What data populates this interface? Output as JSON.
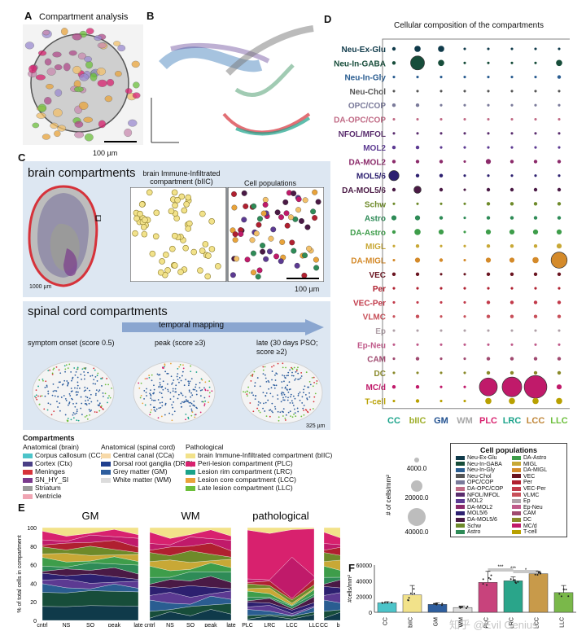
{
  "panel_labels": {
    "a": "A",
    "b": "B",
    "c": "C",
    "d": "D",
    "e": "E",
    "f": "F"
  },
  "panel_a": {
    "title": "Compartment analysis",
    "scale": "100 µm"
  },
  "panel_c": {
    "brain_title": "brain compartments",
    "biic_title": "brain Immune-Infiltrated compartment (bIIC)",
    "cellpop_title": "Cell populations",
    "scale_brain": "1000 µm",
    "scale_inset": "100 µm",
    "spinal_title": "spinal cord compartments",
    "temporal": "temporal mapping",
    "stage1": "symptom onset (score 0.5)",
    "stage2": "peak (score ≥3)",
    "stage3": "late (30 days PSO; score ≥2)",
    "scale_spinal": "325 µm",
    "legend_title": "Compartments",
    "legend_groups": [
      {
        "title": "Anatomical (brain)",
        "items": [
          {
            "label": "Corpus callosum (CC)",
            "color": "#4cc4c9"
          },
          {
            "label": "Cortex (Ctx)",
            "color": "#4a3f86"
          },
          {
            "label": "Meninges",
            "color": "#d6323a"
          },
          {
            "label": "SN_HY_SI",
            "color": "#7a3a8c"
          },
          {
            "label": "Striatum",
            "color": "#9a9a9a"
          },
          {
            "label": "Ventricle",
            "color": "#f0a5b3"
          }
        ]
      },
      {
        "title": "Anatomical (spinal cord)",
        "items": [
          {
            "label": "Central canal (CCa)",
            "color": "#f7d9a8"
          },
          {
            "label": "Dorsal root ganglia (DRG)",
            "color": "#1f3f8f"
          },
          {
            "label": "Grey matter (GM)",
            "color": "#2e5e9e"
          },
          {
            "label": "White matter (WM)",
            "color": "#dcdcdc"
          }
        ]
      },
      {
        "title": "Pathological",
        "items": [
          {
            "label": "brain Immune-Infiltrated compartment (bIIC)",
            "color": "#f2e28a"
          },
          {
            "label": "Peri-lesion compartment (PLC)",
            "color": "#d8216e"
          },
          {
            "label": "Lesion rim compartment (LRC)",
            "color": "#1aa38a"
          },
          {
            "label": "Lesion core compartment (LCC)",
            "color": "#e9a33a"
          },
          {
            "label": "Late lesion compartment (LLC)",
            "color": "#6cbf3b"
          }
        ]
      }
    ]
  },
  "chart_data": [
    {
      "type": "scatter",
      "title": "Cellular composition of the compartments",
      "columns": [
        "CC",
        "bIIC",
        "GM",
        "WM",
        "PLC",
        "LRC",
        "LCC",
        "LLC"
      ],
      "column_colors": [
        "#1aa38a",
        "#9fae2a",
        "#1f4f8f",
        "#a8a8a8",
        "#d8216e",
        "#1aa38a",
        "#c0873a",
        "#6cbf3b"
      ],
      "rows": [
        {
          "label": "Neu-Ex-Glu",
          "color": "#0f3a4a",
          "values": [
            1,
            3,
            3,
            0.5,
            0.5,
            0.5,
            0.5,
            0.5
          ]
        },
        {
          "label": "Neu-In-GABA",
          "color": "#174d3a",
          "values": [
            1,
            15,
            3,
            0.5,
            0.5,
            0.5,
            0.5,
            3
          ]
        },
        {
          "label": "Neu-In-Gly",
          "color": "#2a5d91",
          "values": [
            0.5,
            0.5,
            0.5,
            0.5,
            0.5,
            0.5,
            0.5,
            1
          ]
        },
        {
          "label": "Neu-Chol",
          "color": "#555555",
          "values": [
            0.5,
            0.5,
            0.5,
            0.5,
            0.5,
            0.5,
            0.5,
            0.5
          ]
        },
        {
          "label": "OPC/COP",
          "color": "#7a7a9a",
          "values": [
            1,
            1,
            0.5,
            0.5,
            0.5,
            0.5,
            0.5,
            0.5
          ]
        },
        {
          "label": "DA-OPC/COP",
          "color": "#c06a85",
          "values": [
            0.5,
            0.5,
            0.5,
            0.5,
            0.5,
            0.5,
            0.5,
            0.5
          ]
        },
        {
          "label": "NFOL/MFOL",
          "color": "#5a2d6e",
          "values": [
            0.5,
            0.5,
            0.5,
            0.5,
            0.5,
            0.5,
            0.5,
            0.5
          ]
        },
        {
          "label": "MOL2",
          "color": "#5c3a92",
          "values": [
            1,
            1,
            0.5,
            0.5,
            0.5,
            0.5,
            0.5,
            0.5
          ]
        },
        {
          "label": "DA-MOL2",
          "color": "#8b2a6a",
          "values": [
            1,
            1,
            1,
            0.5,
            2,
            1,
            1,
            1
          ]
        },
        {
          "label": "MOL5/6",
          "color": "#2d2070",
          "values": [
            8,
            1,
            1,
            0.5,
            0.5,
            0.5,
            0.5,
            0.5
          ]
        },
        {
          "label": "DA-MOL5/6",
          "color": "#4a1a45",
          "values": [
            1,
            4,
            1,
            0.5,
            1,
            1,
            1,
            1
          ]
        },
        {
          "label": "Schw",
          "color": "#6e8a2a",
          "values": [
            0.5,
            0.5,
            0.5,
            0.5,
            1,
            1,
            1,
            1
          ]
        },
        {
          "label": "Astro",
          "color": "#2e8b57",
          "values": [
            2,
            2,
            1,
            0.5,
            1,
            1,
            1,
            1
          ]
        },
        {
          "label": "DA-Astro",
          "color": "#3e9d4a",
          "values": [
            1,
            3,
            2,
            0.5,
            2,
            2,
            2,
            2
          ]
        },
        {
          "label": "MIGL",
          "color": "#c8a836",
          "values": [
            0.5,
            1,
            0.5,
            0.5,
            1,
            1,
            1,
            2
          ]
        },
        {
          "label": "DA-MIGL",
          "color": "#d48a2a",
          "values": [
            0.5,
            2,
            1,
            0.5,
            2,
            2,
            3,
            20
          ]
        },
        {
          "label": "VEC",
          "color": "#6a1420",
          "values": [
            1,
            1,
            0.5,
            0.5,
            1,
            1,
            1,
            1
          ]
        },
        {
          "label": "Per",
          "color": "#b02030",
          "values": [
            0.5,
            0.5,
            0.5,
            0.5,
            0.5,
            0.5,
            0.5,
            0.5
          ]
        },
        {
          "label": "VEC-Per",
          "color": "#c23a4a",
          "values": [
            0.5,
            0.5,
            0.5,
            0.5,
            1,
            1,
            1,
            1
          ]
        },
        {
          "label": "VLMC",
          "color": "#c8505a",
          "values": [
            0.5,
            1,
            0.5,
            0.5,
            1,
            1,
            1,
            1
          ]
        },
        {
          "label": "Ep",
          "color": "#b0a0a8",
          "values": [
            0.5,
            0.5,
            0.5,
            0.5,
            0.5,
            0.5,
            0.5,
            0.5
          ]
        },
        {
          "label": "Ep-Neu",
          "color": "#c05a8a",
          "values": [
            0.5,
            0.5,
            0.5,
            0.5,
            0.5,
            0.5,
            0.5,
            0.5
          ]
        },
        {
          "label": "CAM",
          "color": "#a04a70",
          "values": [
            0.5,
            1,
            0.5,
            0.5,
            1,
            1,
            1,
            1
          ]
        },
        {
          "label": "DC",
          "color": "#8a8a2a",
          "values": [
            0.5,
            0.5,
            0.5,
            0.5,
            1,
            1,
            1,
            1
          ]
        },
        {
          "label": "MC/d",
          "color": "#c01a6a",
          "values": [
            1,
            1,
            0.5,
            0.5,
            25,
            30,
            40,
            2
          ]
        },
        {
          "label": "T-cell",
          "color": "#b8a000",
          "values": [
            0.5,
            1,
            0.5,
            0.5,
            3,
            3,
            3,
            3
          ]
        }
      ],
      "size_legend": {
        "title": "# of cells/mm²",
        "values": [
          4000,
          20000,
          40000
        ],
        "labels": [
          "4000.0",
          "20000.0",
          "40000.0"
        ]
      },
      "cellpop_legend_title": "Cell populations",
      "cellpop_legend": [
        [
          "Neu-Ex-Glu",
          "#0f3a4a"
        ],
        [
          "Neu-In-GABA",
          "#174d3a"
        ],
        [
          "Neu-In-Gly",
          "#2a5d91"
        ],
        [
          "Neu-Chol",
          "#555555"
        ],
        [
          "OPC/COP",
          "#7a7a9a"
        ],
        [
          "DA-OPC/COP",
          "#c06a85"
        ],
        [
          "NFOL/MFOL",
          "#5a2d6e"
        ],
        [
          "MOL2",
          "#5c3a92"
        ],
        [
          "DA-MOL2",
          "#8b2a6a"
        ],
        [
          "MOL5/6",
          "#2d2070"
        ],
        [
          "DA-MOL5/6",
          "#4a1a45"
        ],
        [
          "Schw",
          "#6e8a2a"
        ],
        [
          "Astro",
          "#2e8b57"
        ],
        [
          "DA-Astro",
          "#3e9d4a"
        ],
        [
          "MIGL",
          "#c8a836"
        ],
        [
          "DA-MIGL",
          "#d48a2a"
        ],
        [
          "VEC",
          "#6a1420"
        ],
        [
          "Per",
          "#b02030"
        ],
        [
          "VEC-Per",
          "#c23a4a"
        ],
        [
          "VLMC",
          "#c8505a"
        ],
        [
          "Ep",
          "#b0a0a8"
        ],
        [
          "Ep-Neu",
          "#c05a8a"
        ],
        [
          "CAM",
          "#a04a70"
        ],
        [
          "DC",
          "#8a8a2a"
        ],
        [
          "MC/d",
          "#c01a6a"
        ],
        [
          "T-cell",
          "#b8a000"
        ]
      ]
    },
    {
      "type": "area",
      "ylabel": "% of total cells in compartment",
      "ylim": [
        0,
        100
      ],
      "yticks": [
        "0",
        "20",
        "40",
        "60",
        "80",
        "100"
      ],
      "panels": [
        {
          "title": "GM",
          "categories": [
            "cntrl",
            "NS",
            "SO",
            "peak",
            "late"
          ]
        },
        {
          "title": "WM",
          "categories": [
            "cntrl",
            "NS",
            "SO",
            "peak",
            "late"
          ]
        },
        {
          "title": "pathological",
          "categories": [
            "PLC",
            "LRC",
            "LCC",
            "LLC"
          ]
        },
        {
          "title": "",
          "categories": [
            "CC",
            "bIIC"
          ]
        }
      ]
    },
    {
      "type": "bar",
      "ylabel": "#cells/mm²",
      "categories": [
        "CC",
        "bIIC",
        "GM",
        "WM",
        "PLC",
        "LRC",
        "LCC",
        "LLC"
      ],
      "values": [
        12000,
        22000,
        10000,
        6000,
        38000,
        40000,
        49000,
        25000
      ],
      "errors": [
        1500,
        12000,
        2000,
        2000,
        14000,
        5000,
        3000,
        9000
      ],
      "colors": [
        "#4cc4c9",
        "#f2e28a",
        "#2e5e9e",
        "#dcdcdc",
        "#c8437c",
        "#2aa58a",
        "#c89a4a",
        "#7ab84a"
      ],
      "ylim": [
        0,
        60000
      ],
      "yticks": [
        "0",
        "20000",
        "40000",
        "60000"
      ],
      "significance": [
        "***",
        "***",
        "*"
      ]
    }
  ],
  "watermark": "知乎 @Evil Genius"
}
